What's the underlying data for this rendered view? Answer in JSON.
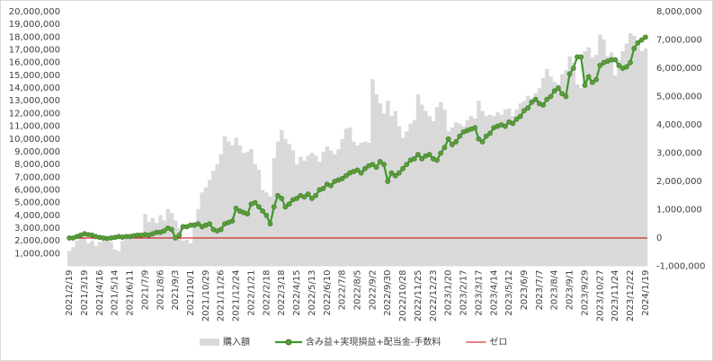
{
  "chart_data": {
    "type": "bar-line",
    "categories": [
      "2021/2/19",
      null,
      null,
      null,
      "2021/3/19",
      null,
      null,
      null,
      "2021/4/16",
      null,
      null,
      null,
      "2021/5/14",
      null,
      null,
      null,
      "2021/6/11",
      null,
      null,
      null,
      "2021/7/9",
      null,
      null,
      null,
      "2021/8/6",
      null,
      null,
      null,
      "2021/9/3",
      null,
      null,
      null,
      "2021/10/1",
      null,
      null,
      null,
      "2021/10/29",
      null,
      null,
      null,
      "2021/11/26",
      null,
      null,
      null,
      "2021/12/24",
      null,
      null,
      null,
      "2022/1/21",
      null,
      null,
      null,
      "2022/2/18",
      null,
      null,
      null,
      "2022/3/18",
      null,
      null,
      null,
      "2022/4/15",
      null,
      null,
      null,
      "2022/5/13",
      null,
      null,
      null,
      "2022/6/10",
      null,
      null,
      null,
      "2022/7/8",
      null,
      null,
      null,
      "2022/8/5",
      null,
      null,
      null,
      "2022/9/2",
      null,
      null,
      null,
      "2022/9/30",
      null,
      null,
      null,
      "2022/10/28",
      null,
      null,
      null,
      "2022/11/25",
      null,
      null,
      null,
      "2022/12/23",
      null,
      null,
      null,
      "2023/1/20",
      null,
      null,
      null,
      "2023/2/17",
      null,
      null,
      null,
      "2023/3/17",
      null,
      null,
      null,
      "2023/4/14",
      null,
      null,
      null,
      "2023/5/12",
      null,
      null,
      null,
      "2023/6/9",
      null,
      null,
      null,
      "2023/7/7",
      null,
      null,
      null,
      "2023/8/4",
      null,
      null,
      null,
      "2023/9/1",
      null,
      null,
      null,
      "2023/9/29",
      null,
      null,
      null,
      "2023/10/27",
      null,
      null,
      null,
      "2023/11/24",
      null,
      null,
      null,
      "2023/12/22",
      null,
      null,
      null,
      "2024/1/19"
    ],
    "series": [
      {
        "name": "購入額",
        "type": "bar",
        "color": "#d9d9d9",
        "values": [
          1200000,
          1500000,
          2000000,
          2200000,
          2300000,
          1800000,
          2000000,
          1600000,
          1900000,
          2100000,
          2000000,
          1900000,
          1300000,
          1200000,
          2000000,
          2100000,
          2200000,
          2300000,
          2400000,
          2300000,
          4100000,
          3500000,
          3800000,
          3400000,
          4000000,
          3600000,
          4500000,
          4200000,
          3600000,
          3000000,
          2000000,
          2100000,
          1800000,
          3500000,
          4500000,
          5800000,
          6200000,
          6800000,
          7500000,
          8000000,
          8800000,
          10200000,
          9800000,
          9500000,
          10100000,
          9500000,
          8900000,
          9000000,
          9200000,
          8000000,
          7600000,
          6000000,
          5800000,
          5500000,
          8500000,
          9800000,
          10700000,
          10000000,
          9600000,
          9100000,
          8000000,
          8600000,
          8300000,
          8700000,
          8900000,
          8700000,
          8200000,
          9000000,
          9400000,
          9100000,
          8800000,
          9200000,
          10000000,
          10800000,
          10900000,
          9800000,
          9500000,
          9700000,
          9800000,
          9700000,
          14700000,
          13500000,
          12800000,
          12000000,
          13000000,
          11800000,
          12200000,
          11000000,
          10100000,
          10600000,
          11200000,
          11500000,
          13500000,
          12700000,
          12200000,
          11800000,
          11400000,
          12500000,
          12900000,
          12300000,
          10600000,
          10900000,
          11300000,
          11200000,
          11000000,
          11500000,
          11800000,
          11600000,
          13000000,
          12200000,
          11800000,
          11900000,
          11800000,
          12100000,
          11900000,
          12300000,
          12400000,
          11800000,
          12300000,
          12800000,
          13000000,
          13400000,
          13200000,
          13600000,
          14000000,
          14800000,
          15500000,
          14900000,
          14500000,
          14300000,
          15100000,
          15400000,
          16500000,
          16000000,
          14300000,
          14000000,
          16900000,
          17200000,
          16400000,
          16600000,
          18200000,
          17800000,
          16500000,
          16800000,
          15000000,
          16200000,
          16900000,
          17500000,
          18300000,
          18100000,
          17600000,
          16900000,
          17100000
        ]
      },
      {
        "name": "含み益+実現損益+配当金-手数料",
        "type": "line",
        "axis": "y2",
        "color": "#3d9b2a",
        "values": [
          0,
          0,
          50000,
          100000,
          150000,
          120000,
          100000,
          50000,
          20000,
          0,
          -20000,
          0,
          20000,
          50000,
          30000,
          50000,
          50000,
          80000,
          100000,
          100000,
          120000,
          100000,
          150000,
          200000,
          200000,
          250000,
          350000,
          300000,
          0,
          100000,
          400000,
          400000,
          450000,
          450000,
          500000,
          400000,
          450000,
          500000,
          300000,
          250000,
          300000,
          500000,
          550000,
          600000,
          1050000,
          950000,
          900000,
          850000,
          1200000,
          1250000,
          1100000,
          950000,
          800000,
          500000,
          1100000,
          1500000,
          1400000,
          1100000,
          1200000,
          1350000,
          1400000,
          1500000,
          1450000,
          1550000,
          1400000,
          1500000,
          1700000,
          1750000,
          1900000,
          1850000,
          2000000,
          2050000,
          2100000,
          2200000,
          2300000,
          2350000,
          2400000,
          2300000,
          2450000,
          2550000,
          2600000,
          2500000,
          2700000,
          2600000,
          2000000,
          2300000,
          2200000,
          2300000,
          2450000,
          2600000,
          2750000,
          2800000,
          2950000,
          2800000,
          2900000,
          2950000,
          2800000,
          2750000,
          3000000,
          3200000,
          3500000,
          3300000,
          3400000,
          3600000,
          3750000,
          3800000,
          3850000,
          3900000,
          3500000,
          3400000,
          3600000,
          3700000,
          3900000,
          3950000,
          4000000,
          3950000,
          4100000,
          4050000,
          4200000,
          4300000,
          4500000,
          4600000,
          4800000,
          4900000,
          4750000,
          4700000,
          4900000,
          5000000,
          5200000,
          5300000,
          5100000,
          5000000,
          5800000,
          6000000,
          6400000,
          6400000,
          5400000,
          5700000,
          5500000,
          5600000,
          6100000,
          6200000,
          6250000,
          6300000,
          6300000,
          6100000,
          6000000,
          6050000,
          6200000,
          6700000,
          6900000,
          7000000,
          7100000
        ]
      }
    ],
    "reference_line": {
      "name": "ゼロ",
      "value": 0,
      "axis": "y2",
      "color": "#cc0000"
    },
    "ylim": [
      0,
      20000000
    ],
    "yticks": [
      {
        "value": 1000000,
        "label": "1,000,000"
      },
      {
        "value": 2000000,
        "label": "2,000,000"
      },
      {
        "value": 3000000,
        "label": "3,000,000"
      },
      {
        "value": 4000000,
        "label": "4,000,000"
      },
      {
        "value": 5000000,
        "label": "5,000,000"
      },
      {
        "value": 6000000,
        "label": "6,000,000"
      },
      {
        "value": 7000000,
        "label": "7,000,000"
      },
      {
        "value": 8000000,
        "label": "8,000,000"
      },
      {
        "value": 9000000,
        "label": "9,000,000"
      },
      {
        "value": 10000000,
        "label": "10,000,000"
      },
      {
        "value": 11000000,
        "label": "11,000,000"
      },
      {
        "value": 12000000,
        "label": "12,000,000"
      },
      {
        "value": 13000000,
        "label": "13,000,000"
      },
      {
        "value": 14000000,
        "label": "14,000,000"
      },
      {
        "value": 15000000,
        "label": "15,000,000"
      },
      {
        "value": 16000000,
        "label": "16,000,000"
      },
      {
        "value": 17000000,
        "label": "17,000,000"
      },
      {
        "value": 18000000,
        "label": "18,000,000"
      },
      {
        "value": 19000000,
        "label": "19,000,000"
      },
      {
        "value": 20000000,
        "label": "20,000,000"
      }
    ],
    "y2lim": [
      -1000000,
      8000000
    ],
    "y2ticks": [
      {
        "value": -1000000,
        "label": "-1,000,000"
      },
      0,
      {
        "value": 1000000,
        "label": "1,000,000"
      },
      {
        "value": 2000000,
        "label": "2,000,000"
      },
      {
        "value": 3000000,
        "label": "3,000,000"
      },
      {
        "value": 4000000,
        "label": "4,000,000"
      },
      {
        "value": 5000000,
        "label": "5,000,000"
      },
      {
        "value": 6000000,
        "label": "6,000,000"
      },
      {
        "value": 7000000,
        "label": "7,000,000"
      },
      {
        "value": 8000000,
        "label": "8,000,000"
      }
    ],
    "legend": "bottom"
  }
}
